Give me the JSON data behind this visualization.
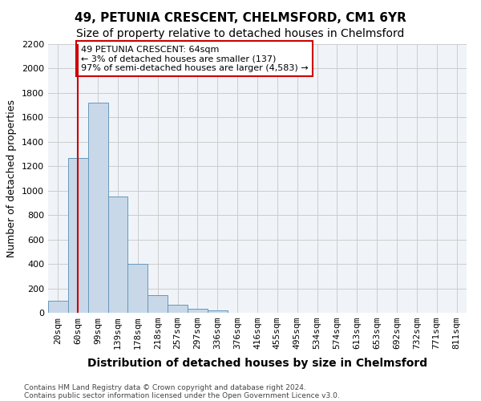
{
  "title": "49, PETUNIA CRESCENT, CHELMSFORD, CM1 6YR",
  "subtitle": "Size of property relative to detached houses in Chelmsford",
  "xlabel": "Distribution of detached houses by size in Chelmsford",
  "ylabel": "Number of detached properties",
  "footnote1": "Contains HM Land Registry data © Crown copyright and database right 2024.",
  "footnote2": "Contains public sector information licensed under the Open Government Licence v3.0.",
  "bins": [
    "20sqm",
    "60sqm",
    "99sqm",
    "139sqm",
    "178sqm",
    "218sqm",
    "257sqm",
    "297sqm",
    "336sqm",
    "376sqm",
    "416sqm",
    "455sqm",
    "495sqm",
    "534sqm",
    "574sqm",
    "613sqm",
    "653sqm",
    "692sqm",
    "732sqm",
    "771sqm",
    "811sqm"
  ],
  "values": [
    100,
    1270,
    1720,
    950,
    400,
    145,
    65,
    35,
    20,
    0,
    0,
    0,
    0,
    0,
    0,
    0,
    0,
    0,
    0,
    0,
    0
  ],
  "bar_color": "#c8d8e8",
  "bar_edge_color": "#6699bb",
  "highlight_bar_index": 1,
  "highlight_line_color": "#cc0000",
  "annotation_text": "49 PETUNIA CRESCENT: 64sqm\n← 3% of detached houses are smaller (137)\n97% of semi-detached houses are larger (4,583) →",
  "annotation_box_color": "#ffffff",
  "annotation_box_edge_color": "#cc0000",
  "ylim": [
    0,
    2200
  ],
  "yticks": [
    0,
    200,
    400,
    600,
    800,
    1000,
    1200,
    1400,
    1600,
    1800,
    2000,
    2200
  ],
  "grid_color": "#cccccc",
  "bg_color": "#f0f4f8",
  "title_fontsize": 11,
  "subtitle_fontsize": 10,
  "axis_label_fontsize": 9,
  "tick_fontsize": 8,
  "annotation_fontsize": 8
}
